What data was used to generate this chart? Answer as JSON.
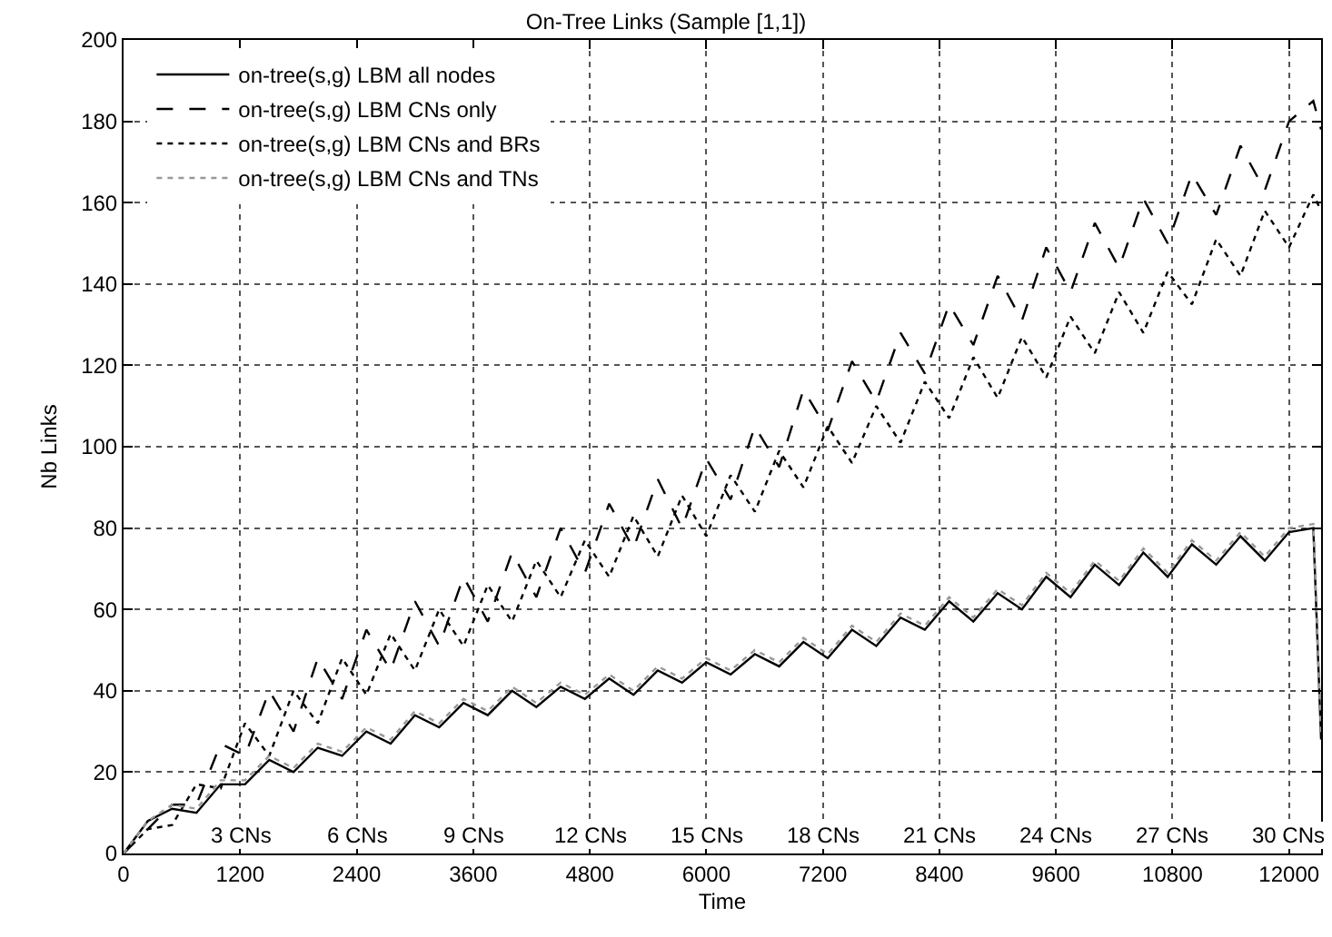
{
  "chart_data": {
    "type": "line",
    "title": "On-Tree Links (Sample [1,1])",
    "xlabel": "Time",
    "ylabel": "Nb Links",
    "x": [
      0,
      250,
      500,
      750,
      1000,
      1250,
      1500,
      1750,
      2000,
      2250,
      2500,
      2750,
      3000,
      3250,
      3500,
      3750,
      4000,
      4250,
      4500,
      4750,
      5000,
      5250,
      5500,
      5750,
      6000,
      6250,
      6500,
      6750,
      7000,
      7250,
      7500,
      7750,
      8000,
      8250,
      8500,
      8750,
      9000,
      9250,
      9500,
      9750,
      10000,
      10250,
      10500,
      10750,
      11000,
      11250,
      11500,
      11750,
      12000,
      12250,
      12330
    ],
    "series": [
      {
        "name": "on-tree(s,g) LBM all nodes",
        "color": "#000000",
        "line_style": "solid",
        "values": [
          0,
          8,
          11,
          10,
          17,
          17,
          23,
          20,
          26,
          24,
          30,
          27,
          34,
          31,
          37,
          34,
          40,
          36,
          41,
          38,
          43,
          39,
          45,
          42,
          47,
          44,
          49,
          46,
          52,
          48,
          55,
          51,
          58,
          55,
          62,
          57,
          64,
          60,
          68,
          63,
          71,
          66,
          74,
          68,
          76,
          71,
          78,
          72,
          79,
          80,
          28
        ]
      },
      {
        "name": "on-tree(s,g) LBM CNs only",
        "color": "#000000",
        "line_style": "dashed",
        "values": [
          0,
          6,
          12,
          12,
          27,
          24,
          40,
          30,
          48,
          38,
          55,
          45,
          62,
          51,
          68,
          57,
          74,
          63,
          80,
          69,
          86,
          75,
          92,
          80,
          97,
          87,
          105,
          95,
          114,
          104,
          121,
          111,
          128,
          118,
          135,
          125,
          142,
          131,
          149,
          138,
          155,
          144,
          161,
          150,
          167,
          157,
          174,
          163,
          180,
          185,
          178
        ]
      },
      {
        "name": "on-tree(s,g) LBM CNs and BRs",
        "color": "#000000",
        "line_style": "dotted",
        "values": [
          0,
          6,
          7,
          17,
          16,
          32,
          24,
          40,
          32,
          48,
          39,
          54,
          45,
          60,
          51,
          66,
          57,
          72,
          63,
          77,
          68,
          83,
          73,
          88,
          78,
          93,
          84,
          99,
          90,
          105,
          96,
          110,
          101,
          116,
          107,
          122,
          112,
          127,
          117,
          132,
          123,
          138,
          128,
          143,
          135,
          151,
          142,
          158,
          149,
          162,
          158
        ]
      },
      {
        "name": "on-tree(s,g) LBM CNs and TNs",
        "color": "#999999",
        "line_style": "dotted",
        "values": [
          0,
          8,
          12,
          11,
          18,
          18,
          24,
          21,
          27,
          25,
          31,
          28,
          35,
          32,
          38,
          35,
          41,
          37,
          42,
          39,
          44,
          40,
          46,
          43,
          48,
          45,
          50,
          47,
          53,
          49,
          56,
          52,
          59,
          56,
          63,
          58,
          65,
          61,
          69,
          64,
          72,
          67,
          75,
          69,
          77,
          72,
          79,
          73,
          80,
          81,
          29
        ]
      }
    ],
    "xlim": [
      0,
      12330
    ],
    "ylim": [
      0,
      200
    ],
    "xticks": [
      0,
      1200,
      2400,
      3600,
      4800,
      6000,
      7200,
      8400,
      9600,
      10800,
      12000
    ],
    "yticks": [
      0,
      20,
      40,
      60,
      80,
      100,
      120,
      140,
      160,
      180,
      200
    ],
    "grid": true,
    "legend": "top left",
    "annotations": [
      "3 CNs",
      "6 CNs",
      "9 CNs",
      "12 CNs",
      "15 CNs",
      "18 CNs",
      "21 CNs",
      "24 CNs",
      "27 CNs",
      "30 CNs"
    ]
  }
}
